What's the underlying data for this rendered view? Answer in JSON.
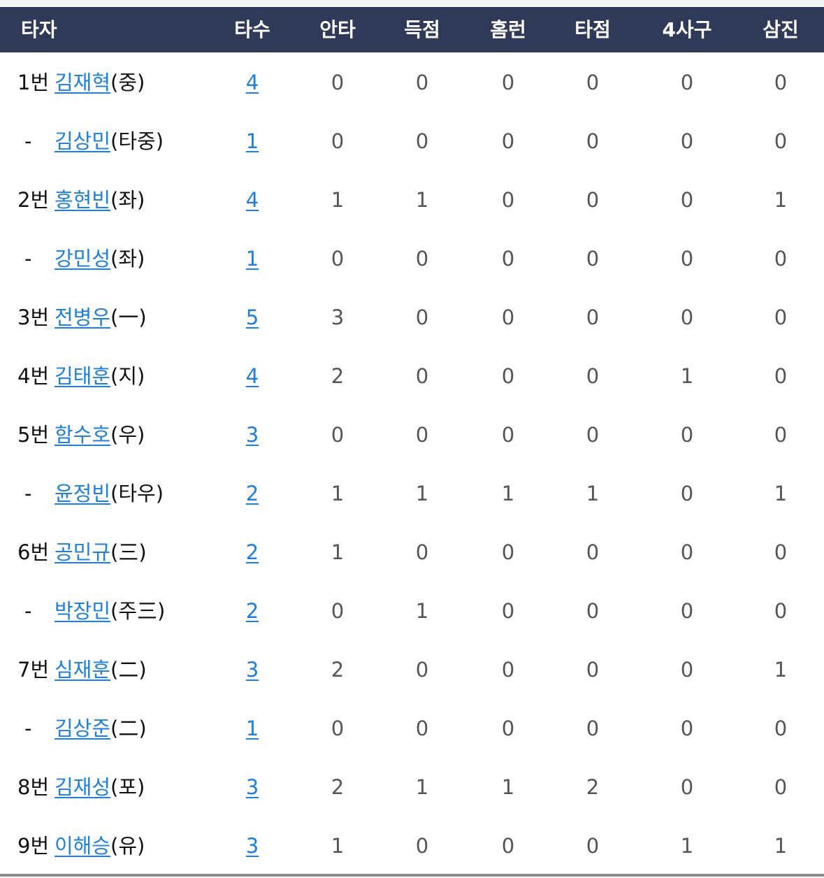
{
  "colors": {
    "header_bg": "#2f3a58",
    "link": "#1a7fe8"
  },
  "headers": [
    "타자",
    "타수",
    "안타",
    "득점",
    "홈런",
    "타점",
    "4사구",
    "삼진"
  ],
  "rows": [
    {
      "order": "1번",
      "name": "김재혁",
      "pos": "(중)",
      "stats": [
        "4",
        "0",
        "0",
        "0",
        "0",
        "0",
        "0"
      ]
    },
    {
      "order": "-",
      "name": "김상민",
      "pos": "(타중)",
      "stats": [
        "1",
        "0",
        "0",
        "0",
        "0",
        "0",
        "0"
      ]
    },
    {
      "order": "2번",
      "name": "홍현빈",
      "pos": "(좌)",
      "stats": [
        "4",
        "1",
        "1",
        "0",
        "0",
        "0",
        "1"
      ]
    },
    {
      "order": "-",
      "name": "강민성",
      "pos": "(좌)",
      "stats": [
        "1",
        "0",
        "0",
        "0",
        "0",
        "0",
        "0"
      ]
    },
    {
      "order": "3번",
      "name": "전병우",
      "pos": "(一)",
      "stats": [
        "5",
        "3",
        "0",
        "0",
        "0",
        "0",
        "0"
      ]
    },
    {
      "order": "4번",
      "name": "김태훈",
      "pos": "(지)",
      "stats": [
        "4",
        "2",
        "0",
        "0",
        "0",
        "1",
        "0"
      ]
    },
    {
      "order": "5번",
      "name": "함수호",
      "pos": "(우)",
      "stats": [
        "3",
        "0",
        "0",
        "0",
        "0",
        "0",
        "0"
      ]
    },
    {
      "order": "-",
      "name": "윤정빈",
      "pos": "(타우)",
      "stats": [
        "2",
        "1",
        "1",
        "1",
        "1",
        "0",
        "1"
      ]
    },
    {
      "order": "6번",
      "name": "공민규",
      "pos": "(三)",
      "stats": [
        "2",
        "1",
        "0",
        "0",
        "0",
        "0",
        "0"
      ]
    },
    {
      "order": "-",
      "name": "박장민",
      "pos": "(주三)",
      "stats": [
        "2",
        "0",
        "1",
        "0",
        "0",
        "0",
        "0"
      ]
    },
    {
      "order": "7번",
      "name": "심재훈",
      "pos": "(二)",
      "stats": [
        "3",
        "2",
        "0",
        "0",
        "0",
        "0",
        "1"
      ]
    },
    {
      "order": "-",
      "name": "김상준",
      "pos": "(二)",
      "stats": [
        "1",
        "0",
        "0",
        "0",
        "0",
        "0",
        "0"
      ]
    },
    {
      "order": "8번",
      "name": "김재성",
      "pos": "(포)",
      "stats": [
        "3",
        "2",
        "1",
        "1",
        "2",
        "0",
        "0"
      ]
    },
    {
      "order": "9번",
      "name": "이해승",
      "pos": "(유)",
      "stats": [
        "3",
        "1",
        "0",
        "0",
        "0",
        "1",
        "1"
      ]
    }
  ]
}
